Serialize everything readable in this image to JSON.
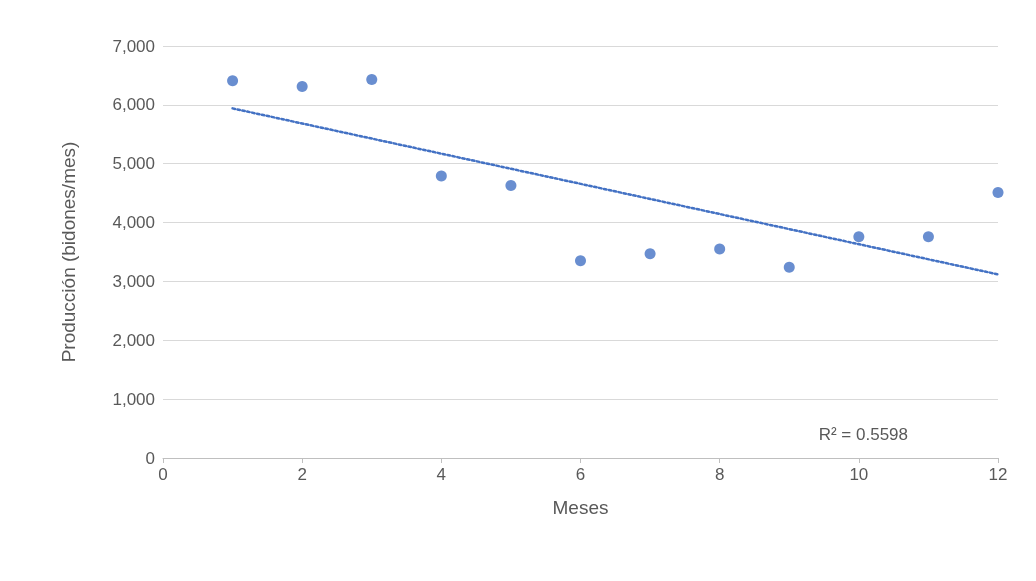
{
  "chart_data": {
    "type": "scatter",
    "xlabel": "Meses",
    "ylabel": "Producción (bidones/mes)",
    "x": [
      1,
      2,
      3,
      4,
      5,
      6,
      7,
      8,
      9,
      10,
      11,
      12
    ],
    "series": [
      {
        "color": "#4472c4",
        "marker": "circle",
        "values": [
          6410,
          6310,
          6430,
          4790,
          4630,
          3350,
          3470,
          3550,
          3240,
          3760,
          3760,
          4510
        ]
      },
      {
        "type": "line",
        "color": "#4472c4",
        "line_style": "dotted",
        "marker": "none",
        "x": [
          1,
          12
        ],
        "values": [
          5940,
          3120
        ]
      }
    ],
    "xlim": [
      0,
      12
    ],
    "xticks": [
      0,
      2,
      4,
      6,
      8,
      10,
      12
    ],
    "ylim": [
      0,
      7000
    ],
    "yticks": [
      {
        "value": 0,
        "label": "0"
      },
      {
        "value": 1000,
        "label": "1,000"
      },
      {
        "value": 2000,
        "label": "2,000"
      },
      {
        "value": 3000,
        "label": "3,000"
      },
      {
        "value": 4000,
        "label": "4,000"
      },
      {
        "value": 5000,
        "label": "5,000"
      },
      {
        "value": 6000,
        "label": "6,000"
      },
      {
        "value": 7000,
        "label": "7,000"
      }
    ],
    "grid": "y",
    "annotations": [
      "R² = 0.5598"
    ]
  }
}
